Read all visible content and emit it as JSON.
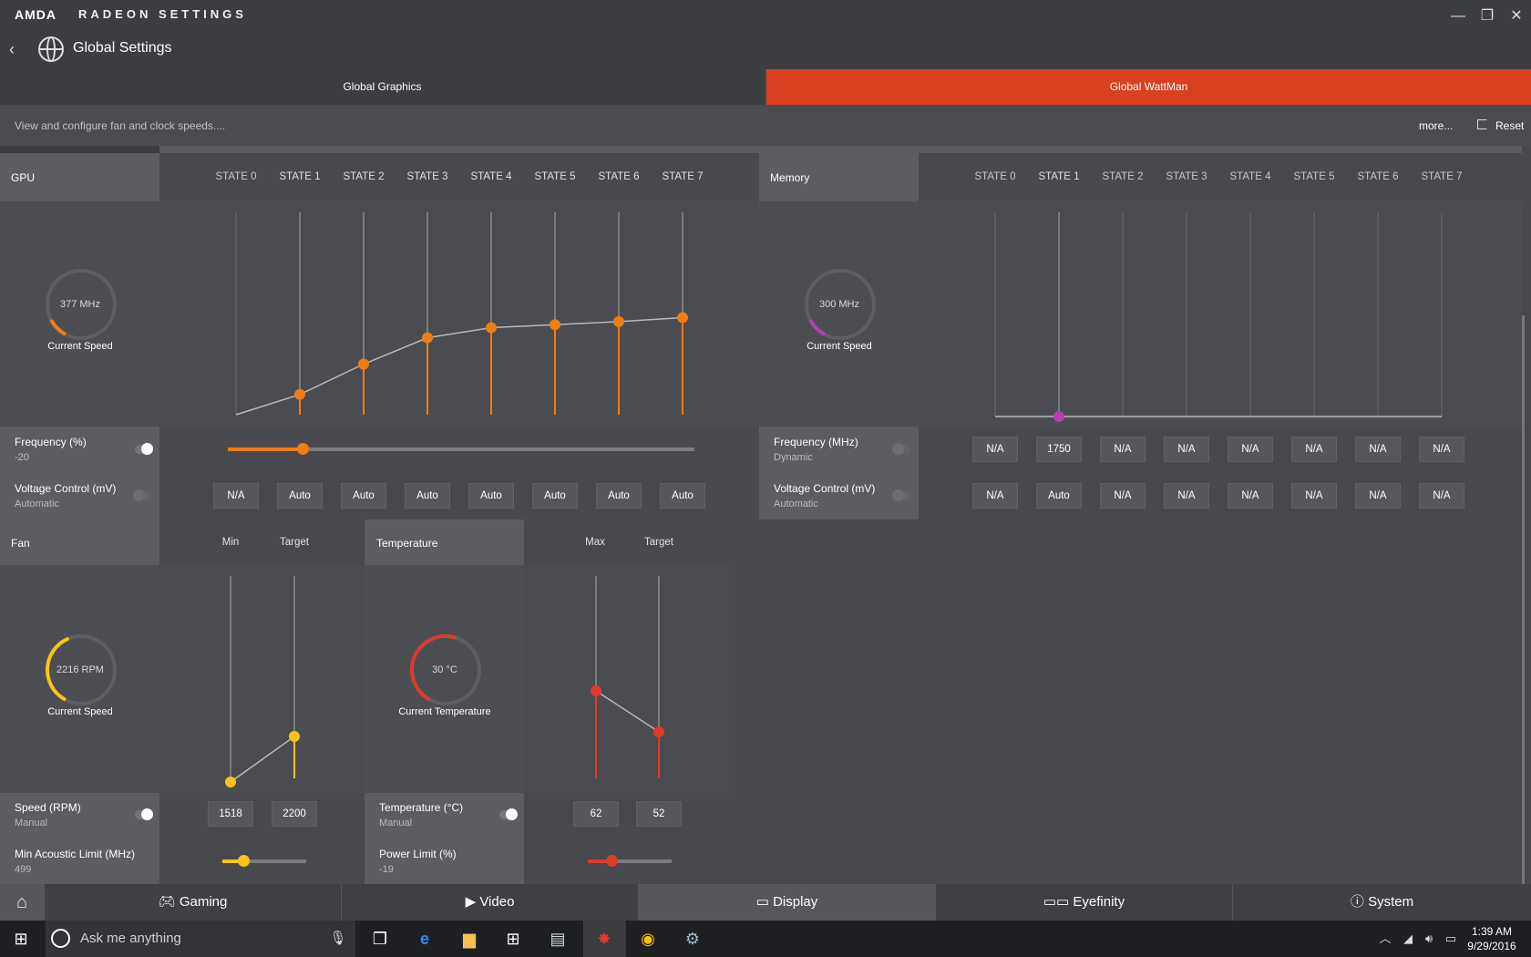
{
  "app": {
    "brand": "AMDA",
    "title": "RADEON SETTINGS",
    "page_title": "Global Settings"
  },
  "window": {
    "minimize": "—",
    "restore": "❐",
    "close": "✕"
  },
  "tabs": [
    {
      "label": "Global Graphics",
      "active": false
    },
    {
      "label": "Global WattMan",
      "active": true
    }
  ],
  "description": "View and configure fan and clock speeds....",
  "more_label": "more...",
  "reset_label": "Reset",
  "accent_color": "#d9401f",
  "gpu": {
    "header": "GPU",
    "states": [
      "STATE 0",
      "STATE 1",
      "STATE 2",
      "STATE 3",
      "STATE 4",
      "STATE 5",
      "STATE 6",
      "STATE 7"
    ],
    "gauge_value": "377 MHz",
    "gauge_label": "Current Speed",
    "gauge_fraction": 0.1,
    "frequency_label": "Frequency (%)",
    "frequency_value": "-20",
    "frequency_slider_fraction": 0.16,
    "voltage_label": "Voltage Control (mV)",
    "voltage_mode": "Automatic",
    "voltage_values": [
      "N/A",
      "Auto",
      "Auto",
      "Auto",
      "Auto",
      "Auto",
      "Auto",
      "Auto"
    ],
    "curve_levels": [
      0.0,
      0.1,
      0.25,
      0.38,
      0.43,
      0.445,
      0.46,
      0.48
    ],
    "color": "#f07d10"
  },
  "memory": {
    "header": "Memory",
    "states": [
      "STATE 0",
      "STATE 1",
      "STATE 2",
      "STATE 3",
      "STATE 4",
      "STATE 5",
      "STATE 6",
      "STATE 7"
    ],
    "gauge_value": "300 MHz",
    "gauge_label": "Current Speed",
    "gauge_fraction": 0.1,
    "frequency_label": "Frequency (MHz)",
    "frequency_mode": "Dynamic",
    "frequency_values": [
      "N/A",
      "1750",
      "N/A",
      "N/A",
      "N/A",
      "N/A",
      "N/A",
      "N/A"
    ],
    "voltage_label": "Voltage Control (mV)",
    "voltage_mode": "Automatic",
    "voltage_values": [
      "N/A",
      "Auto",
      "N/A",
      "N/A",
      "N/A",
      "N/A",
      "N/A",
      "N/A"
    ],
    "color": "#b340b0"
  },
  "fan": {
    "header": "Fan",
    "col_min": "Min",
    "col_target": "Target",
    "gauge_value": "2216 RPM",
    "gauge_label": "Current Speed",
    "gauge_fraction": 0.42,
    "speed_label": "Speed (RPM)",
    "speed_mode": "Manual",
    "min_value": "1518",
    "target_value": "2200",
    "acoustic_label": "Min Acoustic Limit (MHz)",
    "acoustic_value": "499",
    "acoustic_slider_fraction": 0.25,
    "color": "#f5c518"
  },
  "temperature": {
    "header": "Temperature",
    "col_max": "Max",
    "col_target": "Target",
    "gauge_value": "30 °C",
    "gauge_label": "Current Temperature",
    "gauge_fraction": 0.55,
    "temp_label": "Temperature (°C)",
    "temp_mode": "Manual",
    "max_value": "62",
    "target_value": "52",
    "power_label": "Power Limit (%)",
    "power_value": "-19",
    "power_slider_fraction": 0.28,
    "color": "#e03a2a"
  },
  "nav": [
    {
      "label": "Gaming",
      "icon": "gamepad-icon"
    },
    {
      "label": "Video",
      "icon": "play-icon"
    },
    {
      "label": "Display",
      "icon": "monitor-icon"
    },
    {
      "label": "Eyefinity",
      "icon": "eyefinity-icon"
    },
    {
      "label": "System",
      "icon": "info-icon"
    }
  ],
  "taskbar": {
    "search_placeholder": "Ask me anything",
    "time": "1:39 AM",
    "date": "9/29/2016"
  }
}
